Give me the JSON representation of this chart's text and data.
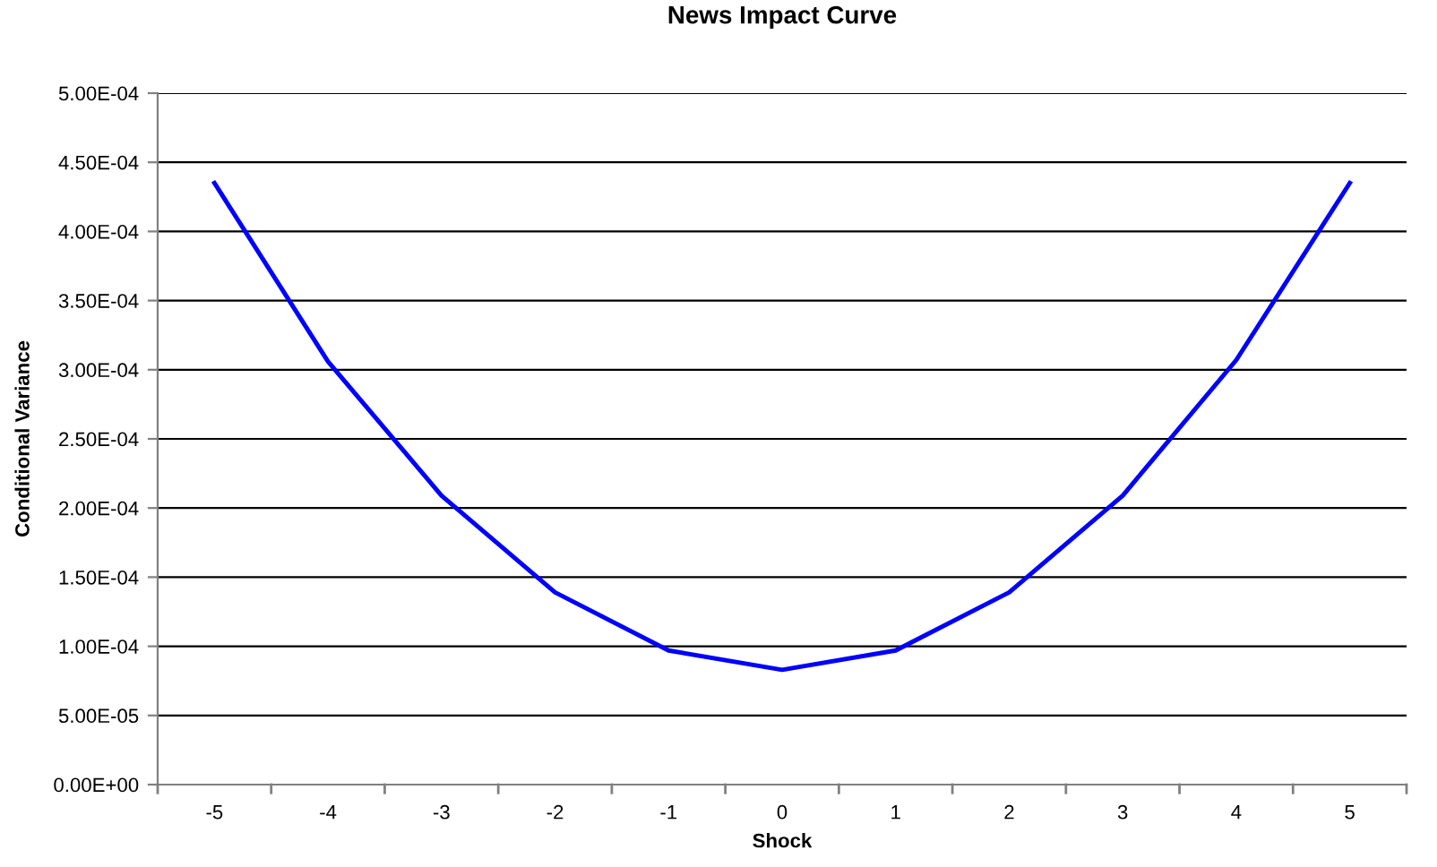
{
  "chart_data": {
    "type": "line",
    "title": "News Impact Curve",
    "xlabel": "Shock",
    "ylabel": "Conditional Variance",
    "categories": [
      "-5",
      "-4",
      "-3",
      "-2",
      "-1",
      "0",
      "1",
      "2",
      "3",
      "4",
      "5"
    ],
    "series": [
      {
        "color": "#0000ff",
        "values": [
          0.000435,
          0.000306,
          0.000209,
          0.000139,
          9.7e-05,
          8.3e-05,
          9.7e-05,
          0.000139,
          0.000209,
          0.000307,
          0.000435
        ]
      }
    ],
    "ylim": [
      0,
      0.0005
    ],
    "yticks": [
      {
        "value": 0,
        "label": "0.00E+00"
      },
      {
        "value": 5e-05,
        "label": "5.00E-05"
      },
      {
        "value": 0.0001,
        "label": "1.00E-04"
      },
      {
        "value": 0.00015,
        "label": "1.50E-04"
      },
      {
        "value": 0.0002,
        "label": "2.00E-04"
      },
      {
        "value": 0.00025,
        "label": "2.50E-04"
      },
      {
        "value": 0.0003,
        "label": "3.00E-04"
      },
      {
        "value": 0.00035,
        "label": "3.50E-04"
      },
      {
        "value": 0.0004,
        "label": "4.00E-04"
      },
      {
        "value": 0.00045,
        "label": "4.50E-04"
      },
      {
        "value": 0.0005,
        "label": "5.00E-04"
      }
    ],
    "grid": "y",
    "marker": "none",
    "line_style": "solid"
  }
}
